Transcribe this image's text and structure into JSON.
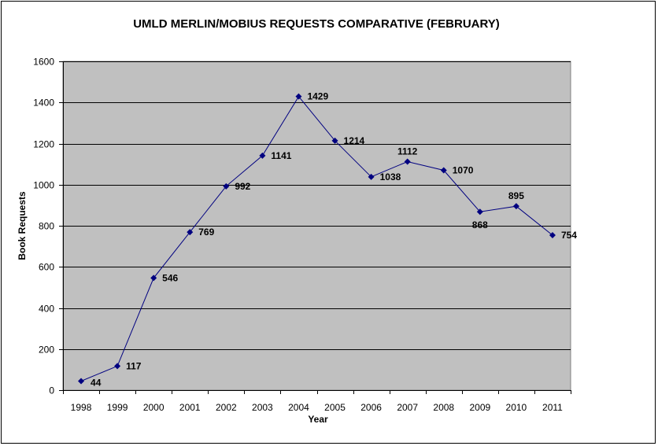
{
  "chart_data": {
    "type": "line",
    "title": "UMLD MERLIN/MOBIUS REQUESTS COMPARATIVE (FEBRUARY)",
    "xlabel": "Year",
    "ylabel": "Book Requests",
    "categories": [
      "1998",
      "1999",
      "2000",
      "2001",
      "2002",
      "2003",
      "2004",
      "2005",
      "2006",
      "2007",
      "2008",
      "2009",
      "2010",
      "2011"
    ],
    "series": [
      {
        "values": [
          44,
          117,
          546,
          769,
          992,
          1141,
          1429,
          1214,
          1038,
          1112,
          1070,
          868,
          895,
          754
        ]
      }
    ],
    "ylim": [
      0,
      1600
    ],
    "yticks": [
      0,
      200,
      400,
      600,
      800,
      1000,
      1200,
      1400,
      1600
    ],
    "grid": true,
    "legend": "none",
    "colors": {
      "plot_background": "#C0C0C0",
      "line": "#000080",
      "gridline": "#000000"
    }
  }
}
